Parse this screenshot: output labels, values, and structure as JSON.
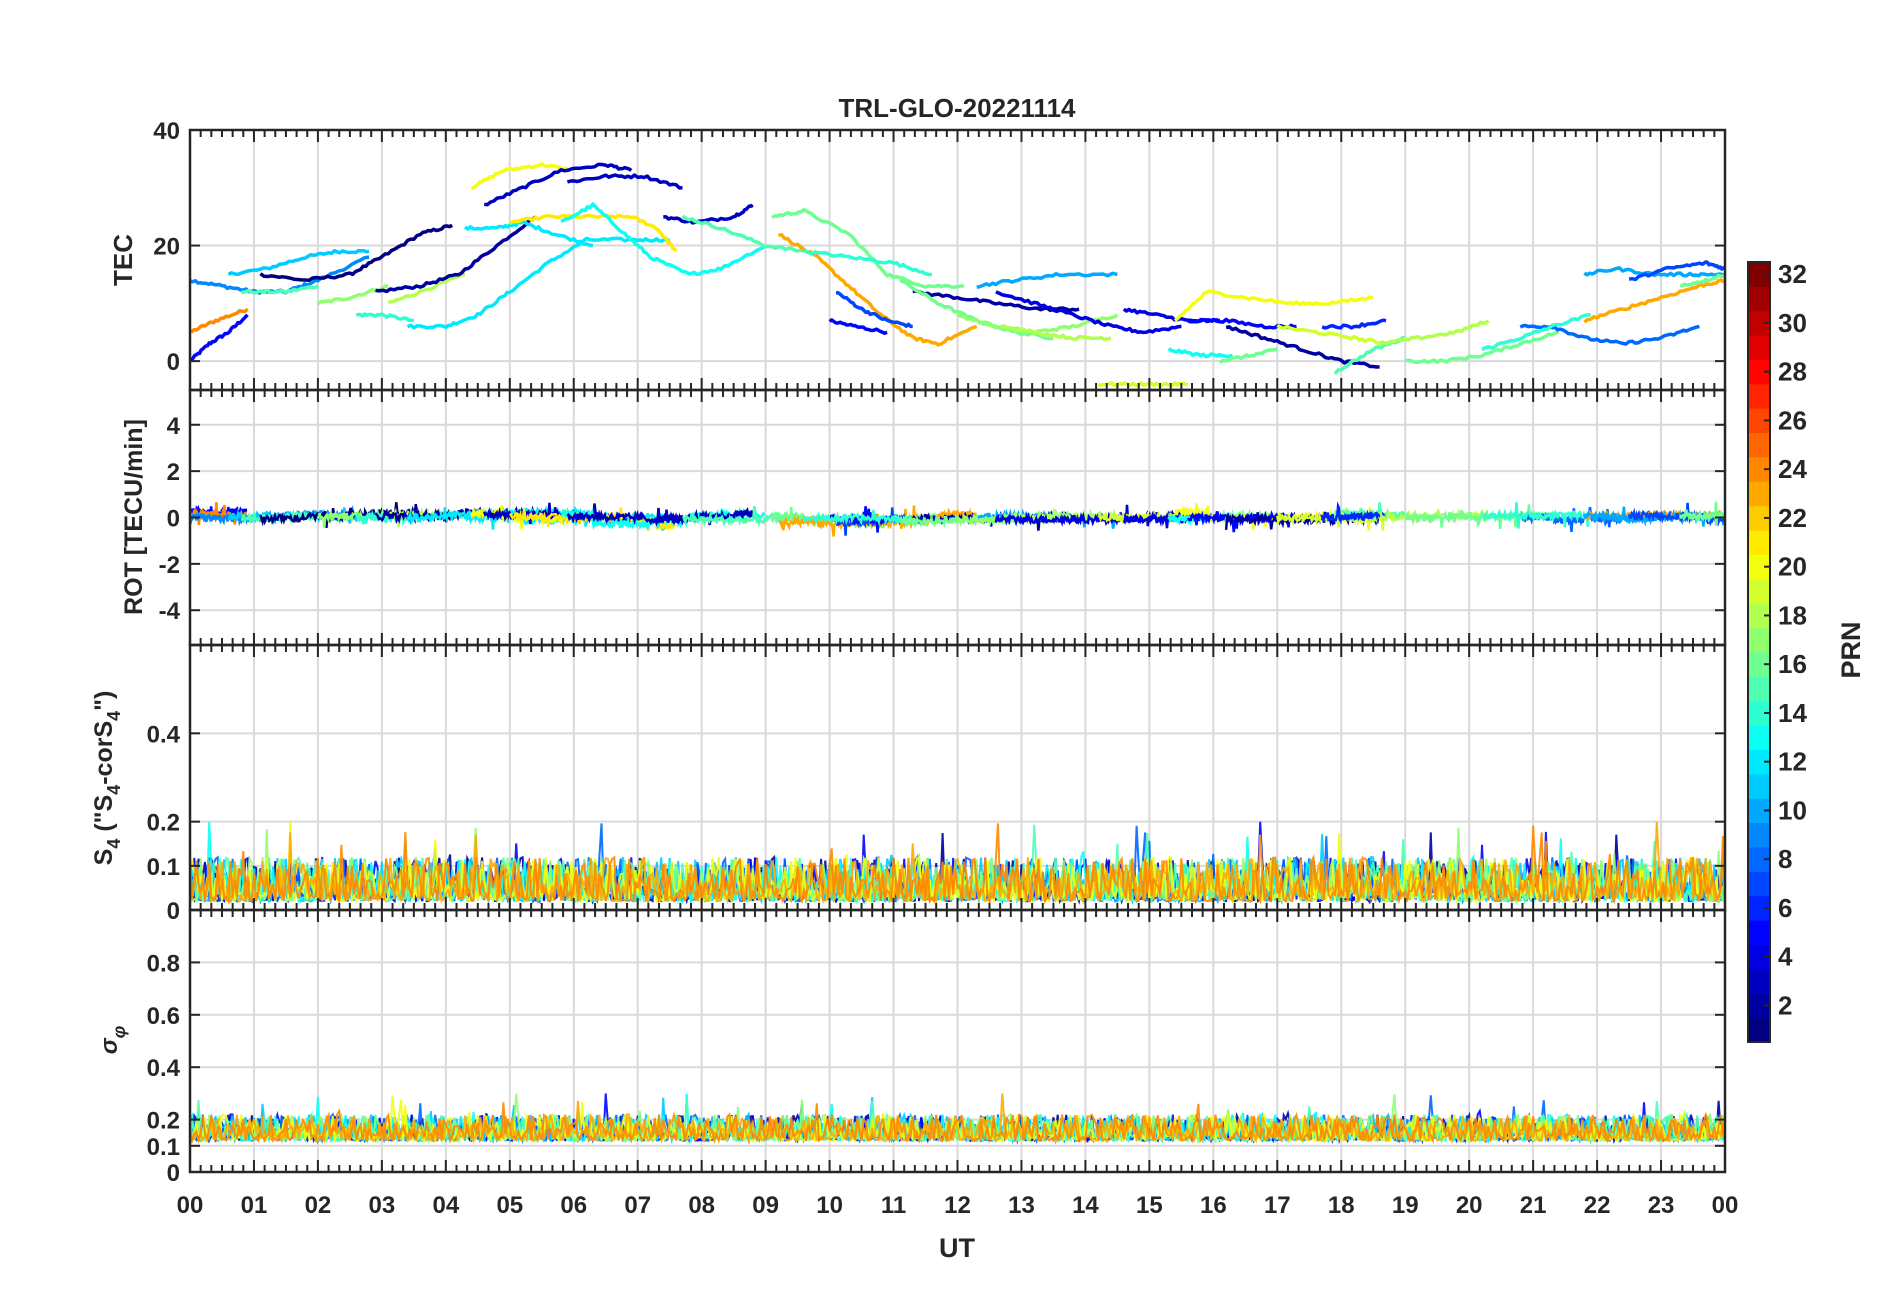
{
  "chart_data": {
    "type": "line",
    "title": "TRL-GLO-20221114",
    "xlabel": "UT",
    "x_ticks": [
      "00",
      "01",
      "02",
      "03",
      "04",
      "05",
      "06",
      "07",
      "08",
      "09",
      "10",
      "11",
      "12",
      "13",
      "14",
      "15",
      "16",
      "17",
      "18",
      "19",
      "20",
      "21",
      "22",
      "23",
      "00"
    ],
    "xlim": [
      0,
      24
    ],
    "colormap": {
      "label": "PRN",
      "range": [
        1,
        32
      ],
      "ticks": [
        "2",
        "4",
        "6",
        "8",
        "10",
        "12",
        "14",
        "16",
        "18",
        "20",
        "22",
        "24",
        "26",
        "28",
        "30",
        "32"
      ]
    },
    "panels": [
      {
        "name": "tec",
        "ylabel": "TEC",
        "ylim": [
          -5,
          40
        ],
        "yticks": [
          0,
          20,
          40
        ],
        "ytick_labels": [
          "0",
          "20",
          "40"
        ],
        "series": [
          {
            "prn": 5,
            "x": [
              0.0,
              0.3,
              0.6,
              0.9
            ],
            "y": [
              0,
              3,
              5,
              8
            ]
          },
          {
            "prn": 24,
            "x": [
              0.0,
              0.4,
              0.9
            ],
            "y": [
              5,
              7,
              9
            ]
          },
          {
            "prn": 9,
            "x": [
              0.0,
              0.5,
              1.0,
              1.5,
              2.0,
              2.8
            ],
            "y": [
              14,
              13,
              12,
              12,
              14,
              18
            ]
          },
          {
            "prn": 11,
            "x": [
              0.6,
              1.2,
              1.8,
              2.3,
              2.8
            ],
            "y": [
              15,
              16,
              18,
              19,
              19
            ]
          },
          {
            "prn": 15,
            "x": [
              0.8,
              1.5,
              2.0
            ],
            "y": [
              12,
              12,
              13
            ]
          },
          {
            "prn": 1,
            "x": [
              1.1,
              1.8,
              2.5,
              3.0,
              3.6,
              4.1
            ],
            "y": [
              15,
              14,
              15,
              18,
              22,
              23.5
            ]
          },
          {
            "prn": 17,
            "x": [
              2.0,
              2.5,
              3.1
            ],
            "y": [
              10,
              11,
              13
            ]
          },
          {
            "prn": 14,
            "x": [
              2.6,
              3.0,
              3.5
            ],
            "y": [
              8,
              8,
              7
            ]
          },
          {
            "prn": 18,
            "x": [
              3.1,
              3.6,
              4.3
            ],
            "y": [
              10,
              12,
              15
            ]
          },
          {
            "prn": 2,
            "x": [
              2.9,
              3.6,
              4.2,
              4.8,
              5.4
            ],
            "y": [
              12,
              13,
              15,
              20,
              25
            ]
          },
          {
            "prn": 12,
            "x": [
              3.4,
              4.0,
              4.5,
              5.0,
              5.6,
              6.2,
              7.0,
              7.5
            ],
            "y": [
              6,
              6,
              8,
              12,
              17,
              21,
              21,
              21
            ]
          },
          {
            "prn": 12,
            "x": [
              4.3,
              4.8,
              5.2,
              5.7,
              6.3
            ],
            "y": [
              23,
              23,
              24,
              22,
              20
            ]
          },
          {
            "prn": 20,
            "x": [
              4.4,
              4.9,
              5.5,
              6.0
            ],
            "y": [
              30,
              33,
              34,
              33
            ]
          },
          {
            "prn": 3,
            "x": [
              4.6,
              5.2,
              5.8,
              6.5,
              6.9
            ],
            "y": [
              27,
              30,
              33,
              34,
              33
            ]
          },
          {
            "prn": 21,
            "x": [
              5.0,
              5.6,
              6.3,
              6.9,
              7.3,
              7.6
            ],
            "y": [
              24,
              25,
              25,
              25,
              23,
              19
            ]
          },
          {
            "prn": 13,
            "x": [
              5.8,
              6.3,
              6.8,
              7.2,
              7.8,
              8.3,
              9.0
            ],
            "y": [
              24,
              27,
              22,
              18,
              15,
              16,
              20
            ]
          },
          {
            "prn": 3,
            "x": [
              5.9,
              6.5,
              7.1,
              7.7
            ],
            "y": [
              31,
              32,
              32,
              30
            ]
          },
          {
            "prn": 3,
            "x": [
              7.4,
              7.9,
              8.5,
              8.8
            ],
            "y": [
              25,
              24,
              25,
              27
            ]
          },
          {
            "prn": 15,
            "x": [
              7.7,
              8.3,
              9.0,
              9.6
            ],
            "y": [
              25,
              23,
              20,
              19
            ]
          },
          {
            "prn": 16,
            "x": [
              9.1,
              9.6,
              10.3,
              10.9,
              11.5,
              12.1
            ],
            "y": [
              25,
              26,
              22,
              15,
              13,
              13
            ]
          },
          {
            "prn": 23,
            "x": [
              9.2,
              9.8,
              10.3,
              10.8,
              11.3,
              11.7,
              12.3
            ],
            "y": [
              22,
              18,
              13,
              8,
              4,
              3,
              6
            ]
          },
          {
            "prn": 7,
            "x": [
              10.1,
              10.5,
              10.9,
              11.3
            ],
            "y": [
              12,
              9,
              7,
              6
            ]
          },
          {
            "prn": 5,
            "x": [
              10.0,
              10.4,
              10.9
            ],
            "y": [
              7,
              6,
              5
            ]
          },
          {
            "prn": 14,
            "x": [
              9.6,
              10.3,
              11.0,
              11.6
            ],
            "y": [
              19,
              18,
              17,
              15
            ]
          },
          {
            "prn": 2,
            "x": [
              11.3,
              12.0,
              12.6,
              13.3,
              13.9
            ],
            "y": [
              12,
              11,
              10,
              9,
              9
            ]
          },
          {
            "prn": 16,
            "x": [
              11.1,
              11.7,
              12.3,
              12.9,
              13.5
            ],
            "y": [
              14,
              10,
              7,
              5,
              4
            ]
          },
          {
            "prn": 10,
            "x": [
              12.3,
              12.9,
              13.6,
              14.5
            ],
            "y": [
              13,
              14,
              15,
              15
            ]
          },
          {
            "prn": 17,
            "x": [
              12.0,
              12.6,
              13.2,
              13.8,
              14.5
            ],
            "y": [
              8,
              6,
              5,
              6,
              8
            ]
          },
          {
            "prn": 18,
            "x": [
              12.7,
              13.2,
              13.8,
              14.4
            ],
            "y": [
              6,
              5,
              4,
              4
            ]
          },
          {
            "prn": 4,
            "x": [
              12.6,
              13.2,
              13.8,
              14.4,
              14.9,
              15.5
            ],
            "y": [
              12,
              10,
              8,
              6,
              5,
              6
            ]
          },
          {
            "prn": 19,
            "x": [
              14.2,
              14.7,
              15.2,
              15.6
            ],
            "y": [
              -4,
              -4,
              -4,
              -4
            ]
          },
          {
            "prn": 4,
            "x": [
              14.6,
              15.1,
              15.6,
              16.1
            ],
            "y": [
              9,
              8,
              7,
              7
            ]
          },
          {
            "prn": 13,
            "x": [
              15.3,
              15.8,
              16.3
            ],
            "y": [
              2,
              1,
              1
            ]
          },
          {
            "prn": 16,
            "x": [
              16.1,
              16.6,
              17.0
            ],
            "y": [
              0,
              1,
              2
            ]
          },
          {
            "prn": 20,
            "x": [
              15.4,
              15.9,
              16.5,
              17.2,
              17.8,
              18.5
            ],
            "y": [
              7,
              12,
              11,
              10,
              10,
              11
            ]
          },
          {
            "prn": 5,
            "x": [
              15.6,
              16.2,
              16.8,
              17.3
            ],
            "y": [
              7,
              7,
              6,
              6
            ]
          },
          {
            "prn": 2,
            "x": [
              16.2,
              16.8,
              17.4,
              18.0,
              18.6
            ],
            "y": [
              6,
              4,
              2,
              0,
              -1
            ]
          },
          {
            "prn": 19,
            "x": [
              17.0,
              17.6,
              18.2,
              18.7
            ],
            "y": [
              6,
              5,
              4,
              3
            ]
          },
          {
            "prn": 15,
            "x": [
              17.9,
              18.5,
              19.0
            ],
            "y": [
              -2,
              2,
              4
            ]
          },
          {
            "prn": 6,
            "x": [
              17.7,
              18.2,
              18.7
            ],
            "y": [
              6,
              6,
              7
            ]
          },
          {
            "prn": 18,
            "x": [
              18.6,
              19.2,
              19.8,
              20.3
            ],
            "y": [
              3,
              4,
              5,
              7
            ]
          },
          {
            "prn": 16,
            "x": [
              19.0,
              19.6,
              20.2,
              20.8,
              21.4
            ],
            "y": [
              0,
              0,
              1,
              3,
              5
            ]
          },
          {
            "prn": 8,
            "x": [
              20.8,
              21.3,
              21.8,
              22.4,
              23.0,
              23.6
            ],
            "y": [
              6,
              6,
              4,
              3,
              4,
              6
            ]
          },
          {
            "prn": 14,
            "x": [
              20.2,
              20.8,
              21.3,
              21.9
            ],
            "y": [
              2,
              4,
              6,
              8
            ]
          },
          {
            "prn": 23,
            "x": [
              21.8,
              22.4,
              23.0,
              23.6,
              24.0
            ],
            "y": [
              7,
              9,
              11,
              13,
              14
            ]
          },
          {
            "prn": 10,
            "x": [
              21.8,
              22.3,
              22.9,
              23.5,
              24.0
            ],
            "y": [
              15,
              16,
              15,
              15,
              15
            ]
          },
          {
            "prn": 7,
            "x": [
              22.5,
              23.1,
              23.7,
              24.0
            ],
            "y": [
              14,
              16,
              17,
              16
            ]
          },
          {
            "prn": 16,
            "x": [
              23.3,
              23.7,
              24.0
            ],
            "y": [
              13,
              14,
              15
            ]
          }
        ]
      },
      {
        "name": "rot",
        "ylabel": "ROT [TECU/min]",
        "ylim": [
          -5.5,
          5.5
        ],
        "yticks": [
          -4,
          -2,
          0,
          2,
          4
        ],
        "ytick_labels": [
          "-4",
          "-2",
          "0",
          "2",
          "4"
        ],
        "noise_level": 0.15
      },
      {
        "name": "s4",
        "ylabel_main": "S",
        "ylabel_sub": "4",
        "ylabel_rest": " (\"S",
        "ylabel_sub2": "4",
        "ylabel_rest2": "-corS",
        "ylabel_sub3": "4",
        "ylabel_end": "\")",
        "ylim": [
          0,
          0.6
        ],
        "yticks": [
          0,
          0.1,
          0.2,
          0.4
        ],
        "ytick_labels": [
          "0",
          "0.1",
          "0.2",
          "0.4"
        ],
        "typical_range": [
          0.02,
          0.12
        ]
      },
      {
        "name": "sigma_phi",
        "ylabel_main": "σ",
        "ylabel_sub": "φ",
        "ylim": [
          0,
          1.0
        ],
        "yticks": [
          0,
          0.1,
          0.2,
          0.4,
          0.6,
          0.8
        ],
        "ytick_labels": [
          "0",
          "0.1",
          "0.2",
          "0.4",
          "0.6",
          "0.8"
        ],
        "typical_range": [
          0.12,
          0.22
        ]
      }
    ]
  }
}
